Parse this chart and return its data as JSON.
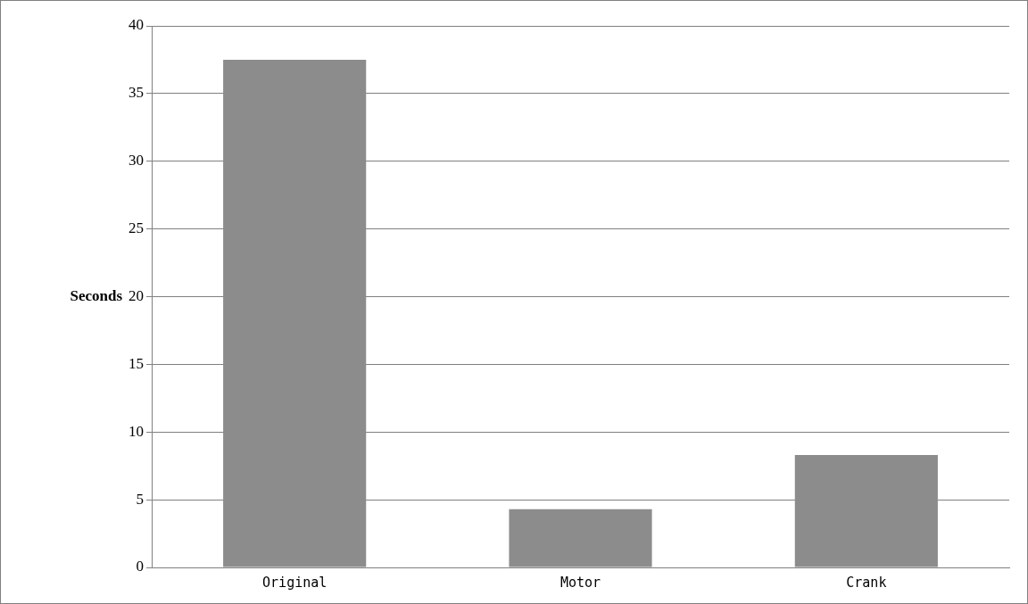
{
  "chart_data": {
    "type": "bar",
    "ylabel": "Seconds",
    "categories": [
      "Original",
      "Motor",
      "Crank"
    ],
    "values": [
      37.5,
      4.3,
      8.3
    ],
    "color": "#8c8c8c",
    "ylim": [
      0,
      40
    ],
    "yticks": [
      0,
      5,
      10,
      15,
      20,
      25,
      30,
      35,
      40
    ],
    "grid": "y"
  }
}
